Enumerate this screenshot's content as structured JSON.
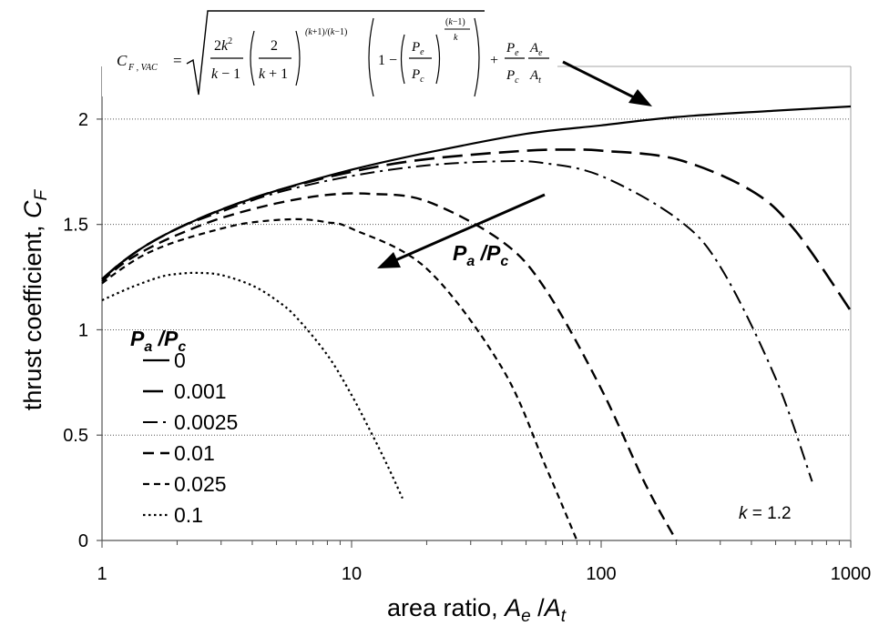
{
  "chart_data": {
    "type": "line",
    "title": "",
    "xlabel": "area ratio, A_e /A_t",
    "ylabel": "thrust coefficient, C_F",
    "xscale": "log",
    "xlim": [
      1,
      1000
    ],
    "ylim": [
      0,
      2.25
    ],
    "x_ticks": [
      "1",
      "10",
      "100",
      "1000"
    ],
    "x_tick_values": [
      1,
      10,
      100,
      1000
    ],
    "y_ticks": [
      "0",
      "0.5",
      "1",
      "1.5",
      "2"
    ],
    "y_tick_values": [
      0,
      0.5,
      1,
      1.5,
      2
    ],
    "grid": "horizontal dotted",
    "legend_title": "Pa/Pc",
    "legend_position": "left-middle",
    "series": [
      {
        "name": "0",
        "dash": "solid",
        "width": 2.2,
        "x": [
          1,
          1.2,
          1.5,
          2,
          3,
          5,
          10,
          20,
          50,
          100,
          200,
          500,
          1000
        ],
        "y": [
          1.24,
          1.32,
          1.4,
          1.48,
          1.57,
          1.66,
          1.76,
          1.84,
          1.93,
          1.97,
          2.01,
          2.04,
          2.06
        ]
      },
      {
        "name": "0.001",
        "dash": "22 9",
        "width": 2.6,
        "x": [
          1,
          1.2,
          1.5,
          2,
          3,
          5,
          10,
          20,
          50,
          80,
          100,
          200,
          400,
          600,
          1000
        ],
        "y": [
          1.24,
          1.32,
          1.4,
          1.48,
          1.57,
          1.66,
          1.75,
          1.81,
          1.85,
          1.855,
          1.85,
          1.81,
          1.66,
          1.47,
          1.09
        ]
      },
      {
        "name": "0.0025",
        "dash": "16 6 3 6",
        "width": 2.0,
        "x": [
          1,
          1.2,
          1.5,
          2,
          3,
          5,
          10,
          20,
          40,
          60,
          100,
          200,
          300,
          500,
          700
        ],
        "y": [
          1.24,
          1.32,
          1.4,
          1.48,
          1.56,
          1.65,
          1.73,
          1.78,
          1.8,
          1.79,
          1.73,
          1.53,
          1.3,
          0.77,
          0.28
        ]
      },
      {
        "name": "0.01",
        "dash": "12 7",
        "width": 2.4,
        "x": [
          1,
          1.2,
          1.5,
          2,
          3,
          5,
          8,
          12,
          20,
          40,
          60,
          100,
          150,
          200
        ],
        "y": [
          1.23,
          1.31,
          1.38,
          1.45,
          1.53,
          1.6,
          1.64,
          1.645,
          1.61,
          1.42,
          1.19,
          0.72,
          0.27,
          0.0
        ]
      },
      {
        "name": "0.025",
        "dash": "7 5",
        "width": 2.2,
        "x": [
          1,
          1.2,
          1.5,
          2,
          3,
          4,
          6,
          8,
          10,
          20,
          40,
          60,
          80
        ],
        "y": [
          1.22,
          1.29,
          1.36,
          1.42,
          1.48,
          1.51,
          1.525,
          1.51,
          1.48,
          1.29,
          0.82,
          0.35,
          0.0
        ]
      },
      {
        "name": "0.1",
        "dash": "2.5 3.5",
        "width": 2.2,
        "x": [
          1,
          1.3,
          1.7,
          2,
          2.4,
          3,
          4,
          5,
          6,
          8,
          10,
          12,
          14,
          16
        ],
        "y": [
          1.14,
          1.2,
          1.25,
          1.265,
          1.27,
          1.26,
          1.21,
          1.14,
          1.06,
          0.88,
          0.69,
          0.51,
          0.35,
          0.2
        ]
      }
    ],
    "annotations": {
      "arrow_label": "Pa/Pc",
      "k_label": "k = 1.2",
      "formula_lhs": "C F, VAC ="
    }
  }
}
